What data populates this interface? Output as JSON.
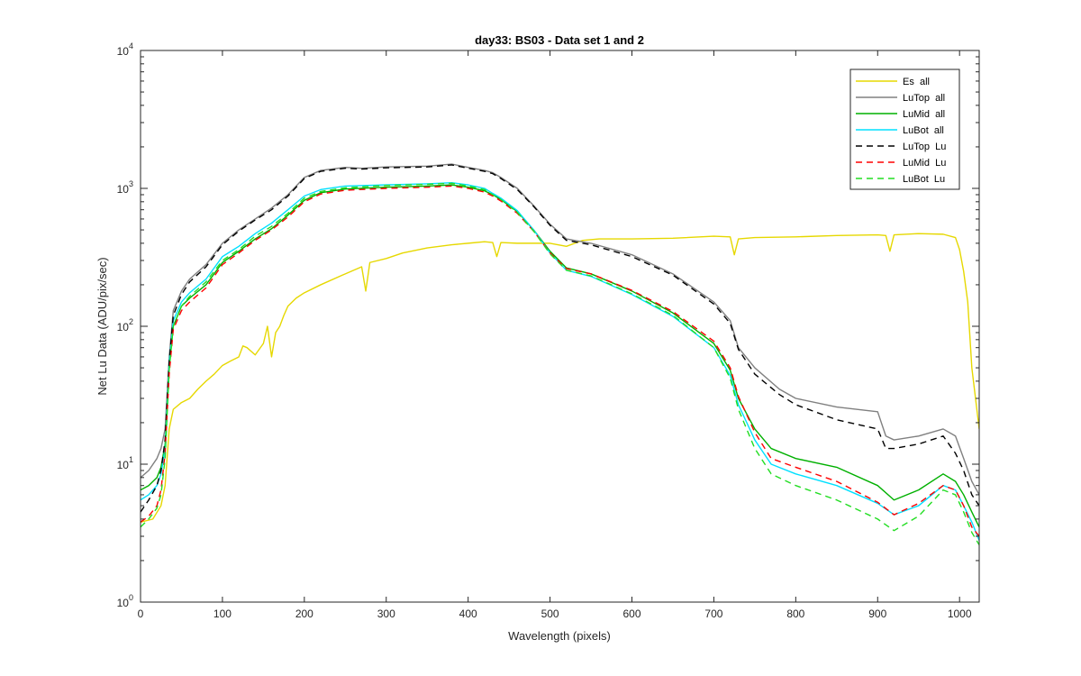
{
  "chart_data": {
    "type": "line",
    "title": "day33: BS03 - Data set 1 and 2",
    "xlabel": "Wavelength (pixels)",
    "ylabel": "Net Lu Data (ADU/pix/sec)",
    "xlim": [
      0,
      1024
    ],
    "ylim": [
      1,
      10000
    ],
    "yscale": "log",
    "grid": false,
    "legend_position": "top-right",
    "x_ticks": [
      "0",
      "100",
      "200",
      "300",
      "400",
      "500",
      "600",
      "700",
      "800",
      "900",
      "1000"
    ],
    "y_ticks": [
      {
        "base": "10",
        "exp": "0"
      },
      {
        "base": "10",
        "exp": "1"
      },
      {
        "base": "10",
        "exp": "2"
      },
      {
        "base": "10",
        "exp": "3"
      },
      {
        "base": "10",
        "exp": "4"
      }
    ],
    "series": [
      {
        "name": "Es  all",
        "color": "#e6d800",
        "dash": "solid",
        "x": [
          0,
          15,
          25,
          30,
          35,
          40,
          50,
          60,
          70,
          80,
          90,
          100,
          110,
          120,
          125,
          130,
          140,
          150,
          155,
          160,
          165,
          170,
          175,
          180,
          190,
          200,
          220,
          250,
          270,
          275,
          280,
          300,
          320,
          350,
          380,
          400,
          420,
          430,
          435,
          440,
          460,
          480,
          500,
          520,
          540,
          560,
          600,
          650,
          700,
          720,
          725,
          730,
          750,
          800,
          850,
          900,
          910,
          915,
          920,
          950,
          980,
          995,
          1000,
          1005,
          1010,
          1015,
          1024
        ],
        "y": [
          3.8,
          4.0,
          5.0,
          7.0,
          18,
          25,
          28,
          30,
          35,
          40,
          45,
          52,
          56,
          60,
          72,
          70,
          62,
          75,
          100,
          60,
          90,
          100,
          120,
          140,
          160,
          175,
          200,
          240,
          270,
          180,
          290,
          310,
          340,
          370,
          390,
          400,
          410,
          405,
          320,
          405,
          400,
          400,
          400,
          380,
          420,
          430,
          430,
          435,
          450,
          445,
          330,
          430,
          440,
          445,
          455,
          460,
          455,
          350,
          460,
          470,
          465,
          440,
          360,
          250,
          150,
          50,
          18
        ]
      },
      {
        "name": "LuTop  all",
        "color": "#808080",
        "dash": "solid",
        "x": [
          0,
          10,
          20,
          25,
          30,
          35,
          40,
          50,
          60,
          80,
          100,
          120,
          140,
          160,
          180,
          200,
          220,
          250,
          270,
          300,
          350,
          380,
          400,
          420,
          430,
          440,
          460,
          480,
          500,
          520,
          550,
          600,
          650,
          700,
          720,
          730,
          750,
          780,
          800,
          850,
          900,
          910,
          920,
          950,
          980,
          995,
          1005,
          1015,
          1024
        ],
        "y": [
          8.0,
          9.0,
          11,
          13,
          18,
          60,
          130,
          180,
          220,
          280,
          400,
          500,
          600,
          720,
          900,
          1200,
          1350,
          1420,
          1400,
          1430,
          1450,
          1500,
          1420,
          1350,
          1300,
          1200,
          1000,
          750,
          550,
          430,
          400,
          330,
          240,
          150,
          110,
          70,
          50,
          35,
          30,
          26,
          24,
          16,
          15,
          16,
          18,
          16,
          11,
          7.5,
          6.0
        ]
      },
      {
        "name": "LuMid  all",
        "color": "#00b000",
        "dash": "solid",
        "x": [
          0,
          10,
          20,
          25,
          30,
          35,
          40,
          50,
          60,
          80,
          100,
          120,
          140,
          160,
          180,
          200,
          220,
          250,
          300,
          350,
          380,
          400,
          420,
          430,
          440,
          460,
          480,
          500,
          520,
          550,
          600,
          650,
          700,
          720,
          730,
          750,
          770,
          800,
          850,
          900,
          920,
          950,
          980,
          995,
          1005,
          1015,
          1024
        ],
        "y": [
          6.5,
          7.0,
          8.0,
          9.5,
          14,
          50,
          100,
          140,
          160,
          200,
          290,
          350,
          430,
          510,
          640,
          820,
          930,
          990,
          1020,
          1040,
          1060,
          1020,
          960,
          900,
          830,
          680,
          500,
          350,
          265,
          240,
          180,
          125,
          75,
          48,
          30,
          18,
          13,
          11,
          9.5,
          7.0,
          5.5,
          6.5,
          8.5,
          7.5,
          6.0,
          4.5,
          3.5
        ]
      },
      {
        "name": "LuBot  all",
        "color": "#00e0ff",
        "dash": "solid",
        "x": [
          0,
          10,
          20,
          25,
          30,
          35,
          40,
          50,
          60,
          80,
          100,
          120,
          140,
          160,
          180,
          200,
          220,
          250,
          300,
          350,
          380,
          400,
          420,
          430,
          440,
          460,
          480,
          500,
          520,
          550,
          600,
          650,
          700,
          720,
          730,
          750,
          770,
          800,
          850,
          900,
          920,
          950,
          980,
          995,
          1005,
          1015,
          1024
        ],
        "y": [
          5.5,
          6.0,
          7.0,
          8.5,
          13,
          55,
          110,
          150,
          175,
          220,
          320,
          380,
          470,
          560,
          700,
          880,
          980,
          1040,
          1060,
          1080,
          1100,
          1060,
          1000,
          920,
          850,
          690,
          500,
          340,
          255,
          230,
          170,
          118,
          70,
          44,
          27,
          15,
          10,
          8.5,
          7.0,
          5.2,
          4.3,
          5.0,
          7.0,
          6.5,
          5.0,
          3.8,
          2.8
        ]
      },
      {
        "name": "LuTop  Lu",
        "color": "#000000",
        "dash": "dashed",
        "x": [
          0,
          10,
          20,
          25,
          30,
          35,
          40,
          50,
          60,
          80,
          100,
          120,
          140,
          160,
          180,
          200,
          220,
          250,
          270,
          300,
          350,
          380,
          400,
          420,
          430,
          440,
          460,
          480,
          500,
          520,
          550,
          600,
          650,
          700,
          720,
          730,
          750,
          780,
          800,
          850,
          900,
          910,
          920,
          950,
          980,
          995,
          1005,
          1015,
          1024
        ],
        "y": [
          4.5,
          5.5,
          7.0,
          9.0,
          15,
          55,
          120,
          170,
          210,
          270,
          390,
          490,
          590,
          700,
          880,
          1180,
          1330,
          1400,
          1380,
          1410,
          1430,
          1480,
          1400,
          1330,
          1280,
          1180,
          980,
          740,
          540,
          420,
          390,
          320,
          235,
          145,
          105,
          68,
          45,
          32,
          27,
          21,
          18,
          13,
          13,
          14,
          16,
          12,
          9.0,
          6.0,
          5.0
        ]
      },
      {
        "name": "LuMid  Lu",
        "color": "#ff0000",
        "dash": "dashed",
        "x": [
          0,
          10,
          20,
          25,
          30,
          35,
          40,
          50,
          60,
          80,
          100,
          120,
          140,
          160,
          180,
          200,
          220,
          250,
          300,
          350,
          380,
          400,
          420,
          430,
          440,
          460,
          480,
          500,
          520,
          550,
          600,
          650,
          700,
          720,
          730,
          750,
          770,
          800,
          850,
          900,
          920,
          950,
          980,
          995,
          1005,
          1015,
          1024
        ],
        "y": [
          3.8,
          4.2,
          5.0,
          6.5,
          12,
          45,
          95,
          130,
          150,
          190,
          280,
          340,
          420,
          500,
          620,
          800,
          910,
          970,
          1000,
          1020,
          1040,
          1000,
          940,
          880,
          810,
          660,
          490,
          340,
          262,
          240,
          182,
          128,
          78,
          50,
          31,
          17,
          11,
          9.5,
          7.5,
          5.3,
          4.3,
          5.2,
          7.0,
          6.5,
          5.0,
          3.5,
          3.0
        ]
      },
      {
        "name": "LuBot  Lu",
        "color": "#22dd22",
        "dash": "dashed",
        "x": [
          0,
          10,
          20,
          25,
          30,
          35,
          40,
          50,
          60,
          80,
          100,
          120,
          140,
          160,
          180,
          200,
          220,
          250,
          300,
          350,
          380,
          400,
          420,
          430,
          440,
          460,
          480,
          500,
          520,
          550,
          600,
          650,
          700,
          720,
          730,
          750,
          770,
          800,
          850,
          900,
          920,
          950,
          980,
          995,
          1005,
          1015,
          1024
        ],
        "y": [
          3.5,
          4.0,
          4.8,
          6.0,
          11,
          48,
          100,
          140,
          165,
          210,
          300,
          360,
          450,
          530,
          660,
          850,
          950,
          1010,
          1050,
          1070,
          1090,
          1040,
          980,
          900,
          830,
          670,
          490,
          335,
          255,
          232,
          172,
          120,
          70,
          42,
          25,
          13,
          8.5,
          7.0,
          5.5,
          4.0,
          3.3,
          4.2,
          6.5,
          6.0,
          4.5,
          3.2,
          2.6
        ]
      }
    ]
  }
}
